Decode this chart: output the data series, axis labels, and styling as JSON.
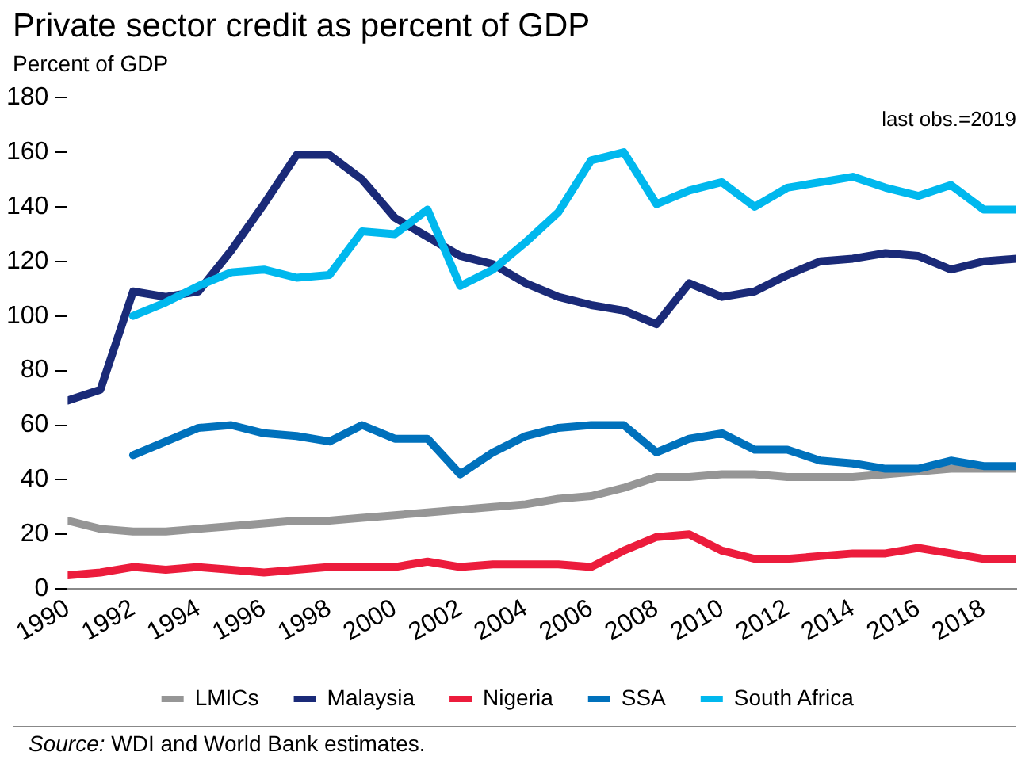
{
  "chart_data": {
    "type": "line",
    "title": "Private sector credit as percent of GDP",
    "ylabel": "Percent of GDP",
    "x": [
      1990,
      1991,
      1992,
      1993,
      1994,
      1995,
      1996,
      1997,
      1998,
      1999,
      2000,
      2001,
      2002,
      2003,
      2004,
      2005,
      2006,
      2007,
      2008,
      2009,
      2010,
      2011,
      2012,
      2013,
      2014,
      2015,
      2016,
      2017,
      2018,
      2019
    ],
    "series": [
      {
        "name": "LMICs",
        "color": "#969696",
        "values": [
          25,
          22,
          21,
          21,
          22,
          23,
          24,
          25,
          25,
          26,
          27,
          28,
          29,
          30,
          31,
          33,
          34,
          37,
          41,
          41,
          42,
          42,
          41,
          41,
          41,
          42,
          43,
          44,
          44,
          44
        ]
      },
      {
        "name": "Malaysia",
        "color": "#1a2a78",
        "values": [
          69,
          73,
          109,
          107,
          109,
          124,
          141,
          159,
          159,
          150,
          136,
          129,
          122,
          119,
          112,
          107,
          104,
          102,
          97,
          112,
          107,
          109,
          115,
          120,
          121,
          123,
          122,
          117,
          120,
          121
        ]
      },
      {
        "name": "Nigeria",
        "color": "#ec1c3c",
        "values": [
          5,
          6,
          8,
          7,
          8,
          7,
          6,
          7,
          8,
          8,
          8,
          10,
          8,
          9,
          9,
          9,
          8,
          14,
          19,
          20,
          14,
          11,
          11,
          12,
          13,
          13,
          15,
          13,
          11,
          11
        ]
      },
      {
        "name": "SSA",
        "color": "#0071bc",
        "values": [
          null,
          null,
          49,
          54,
          59,
          60,
          57,
          56,
          54,
          60,
          55,
          55,
          42,
          50,
          56,
          59,
          60,
          60,
          50,
          55,
          57,
          51,
          51,
          47,
          46,
          44,
          44,
          47,
          45,
          45
        ]
      },
      {
        "name": "South Africa",
        "color": "#00b8ee",
        "values": [
          null,
          null,
          100,
          105,
          111,
          116,
          117,
          114,
          115,
          131,
          130,
          139,
          111,
          117,
          127,
          138,
          157,
          160,
          141,
          146,
          149,
          140,
          147,
          149,
          151,
          147,
          144,
          148,
          139,
          139
        ]
      }
    ],
    "xlim": [
      1990,
      2019
    ],
    "xticks": [
      1990,
      1992,
      1994,
      1996,
      1998,
      2000,
      2002,
      2004,
      2006,
      2008,
      2010,
      2012,
      2014,
      2016,
      2018
    ],
    "ylim": [
      0,
      180
    ],
    "yticks": [
      0,
      20,
      40,
      60,
      80,
      100,
      120,
      140,
      160,
      180
    ],
    "grid": false,
    "legend": "bottom",
    "marker": "none",
    "line_style": "solid",
    "annotations": [
      "last obs.=2019",
      "Source: WDI and World Bank estimates."
    ]
  }
}
